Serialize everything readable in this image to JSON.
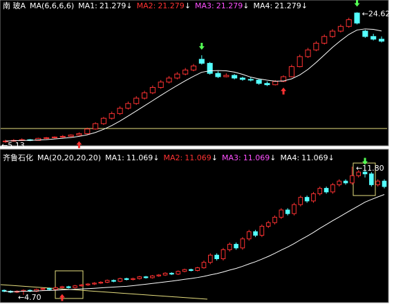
{
  "chart_data": [
    {
      "type": "candlestick",
      "stock": "南 玻A",
      "indicator": "MA(6,6,6,6)",
      "ma_period": 6,
      "ma": [
        {
          "name": "MA1:",
          "value": 21.279,
          "trend": "↓",
          "color": "#ffffff"
        },
        {
          "name": "MA2:",
          "value": 21.279,
          "trend": "↓",
          "color": "#ff3232"
        },
        {
          "name": "MA3:",
          "value": 21.279,
          "trend": "↓",
          "color": "#ff50ff"
        },
        {
          "name": "MA4:",
          "value": 21.279,
          "trend": "↓",
          "color": "#ffffff"
        }
      ],
      "ylim": [
        4.8,
        25
      ],
      "low_label": "←5.13",
      "high_label": "←24.62",
      "low_index": 0,
      "high_index": 43,
      "signals": [
        {
          "index": 9,
          "dir": "up"
        },
        {
          "index": 24,
          "dir": "down"
        },
        {
          "index": 34,
          "dir": "up"
        },
        {
          "index": 43,
          "dir": "down"
        }
      ],
      "ohlc": [
        [
          5.4,
          5.6,
          5.13,
          5.4
        ],
        [
          5.4,
          5.7,
          5.3,
          5.5
        ],
        [
          5.5,
          5.8,
          5.4,
          5.6
        ],
        [
          5.6,
          5.7,
          5.4,
          5.5
        ],
        [
          5.5,
          5.9,
          5.5,
          5.8
        ],
        [
          5.8,
          6.0,
          5.7,
          5.9
        ],
        [
          5.9,
          6.1,
          5.8,
          6.0
        ],
        [
          6.0,
          6.3,
          5.9,
          6.1
        ],
        [
          6.1,
          6.4,
          6.0,
          6.3
        ],
        [
          6.3,
          6.7,
          6.2,
          6.5
        ],
        [
          6.5,
          7.4,
          6.4,
          7.2
        ],
        [
          7.2,
          8.2,
          7.1,
          8.0
        ],
        [
          8.0,
          9.0,
          7.8,
          8.8
        ],
        [
          8.8,
          9.8,
          8.6,
          9.5
        ],
        [
          9.5,
          10.6,
          9.3,
          10.3
        ],
        [
          10.3,
          11.3,
          10.1,
          11.0
        ],
        [
          11.0,
          12.1,
          10.8,
          11.8
        ],
        [
          11.8,
          12.9,
          11.6,
          12.6
        ],
        [
          12.6,
          13.7,
          12.4,
          13.4
        ],
        [
          13.4,
          14.5,
          13.2,
          14.2
        ],
        [
          14.2,
          15.1,
          14.0,
          14.8
        ],
        [
          14.8,
          15.7,
          14.6,
          15.4
        ],
        [
          15.4,
          16.3,
          15.2,
          16.0
        ],
        [
          16.0,
          16.9,
          15.8,
          16.6
        ],
        [
          17.6,
          18.2,
          16.8,
          17.0
        ],
        [
          17.0,
          17.2,
          15.3,
          15.5
        ],
        [
          15.5,
          15.8,
          14.8,
          15.0
        ],
        [
          15.0,
          15.5,
          14.9,
          15.2
        ],
        [
          15.2,
          15.4,
          14.6,
          14.8
        ],
        [
          14.8,
          15.0,
          14.4,
          14.6
        ],
        [
          14.6,
          14.9,
          14.3,
          14.5
        ],
        [
          14.5,
          14.7,
          13.8,
          14.0
        ],
        [
          14.0,
          14.3,
          13.6,
          13.8
        ],
        [
          13.8,
          14.5,
          13.7,
          14.3
        ],
        [
          14.3,
          15.2,
          14.2,
          15.0
        ],
        [
          15.0,
          16.8,
          14.9,
          16.5
        ],
        [
          16.5,
          18.3,
          16.4,
          18.0
        ],
        [
          18.0,
          19.3,
          17.8,
          19.0
        ],
        [
          19.0,
          20.3,
          18.8,
          20.0
        ],
        [
          20.0,
          21.3,
          19.8,
          21.0
        ],
        [
          21.0,
          22.1,
          20.8,
          21.8
        ],
        [
          21.8,
          22.8,
          21.6,
          22.5
        ],
        [
          22.5,
          23.8,
          22.3,
          23.5
        ],
        [
          24.5,
          24.62,
          22.8,
          23.0
        ],
        [
          21.8,
          22.0,
          20.8,
          21.0
        ],
        [
          21.0,
          21.4,
          20.4,
          20.6
        ],
        [
          20.6,
          21.0,
          20.1,
          20.3
        ]
      ]
    },
    {
      "type": "candlestick",
      "stock": "齐鲁石化",
      "indicator": "MA(20,20,20,20)",
      "ma_period": 20,
      "ma": [
        {
          "name": "MA1:",
          "value": 11.069,
          "trend": "↓",
          "color": "#ffffff"
        },
        {
          "name": "MA2:",
          "value": 11.069,
          "trend": "↓",
          "color": "#ff3232"
        },
        {
          "name": "MA3:",
          "value": 11.069,
          "trend": "↓",
          "color": "#ff50ff"
        },
        {
          "name": "MA4:",
          "value": 11.069,
          "trend": "↓",
          "color": "#ffffff"
        }
      ],
      "ylim": [
        4.5,
        12
      ],
      "low_label": "←4.70",
      "high_label": "←11.80",
      "low_index": 3,
      "high_index": 54,
      "signals": [
        {
          "index": 9,
          "dir": "up"
        },
        {
          "index": 56,
          "dir": "down"
        }
      ],
      "ohlc": [
        [
          4.95,
          5.0,
          4.85,
          4.9
        ],
        [
          4.9,
          4.95,
          4.8,
          4.85
        ],
        [
          4.85,
          4.95,
          4.8,
          4.9
        ],
        [
          4.9,
          5.0,
          4.7,
          4.95
        ],
        [
          4.95,
          5.0,
          4.85,
          4.9
        ],
        [
          4.9,
          5.05,
          4.85,
          5.0
        ],
        [
          5.0,
          5.1,
          4.95,
          5.05
        ],
        [
          5.05,
          5.1,
          4.95,
          5.0
        ],
        [
          5.0,
          5.15,
          4.95,
          5.1
        ],
        [
          5.1,
          5.2,
          5.05,
          5.15
        ],
        [
          5.15,
          5.2,
          5.05,
          5.1
        ],
        [
          5.1,
          5.25,
          5.05,
          5.2
        ],
        [
          5.2,
          5.3,
          5.15,
          5.25
        ],
        [
          5.25,
          5.35,
          5.2,
          5.3
        ],
        [
          5.3,
          5.4,
          5.25,
          5.35
        ],
        [
          5.35,
          5.45,
          5.3,
          5.4
        ],
        [
          5.4,
          5.55,
          5.35,
          5.5
        ],
        [
          5.5,
          5.55,
          5.4,
          5.45
        ],
        [
          5.45,
          5.65,
          5.4,
          5.6
        ],
        [
          5.6,
          5.65,
          5.5,
          5.55
        ],
        [
          5.55,
          5.65,
          5.5,
          5.6
        ],
        [
          5.6,
          5.75,
          5.55,
          5.7
        ],
        [
          5.7,
          5.75,
          5.6,
          5.65
        ],
        [
          5.65,
          5.8,
          5.6,
          5.75
        ],
        [
          5.75,
          5.85,
          5.7,
          5.8
        ],
        [
          5.8,
          5.95,
          5.75,
          5.9
        ],
        [
          5.9,
          5.95,
          5.8,
          5.85
        ],
        [
          5.85,
          6.05,
          5.8,
          6.0
        ],
        [
          6.0,
          6.15,
          5.95,
          6.1
        ],
        [
          6.1,
          6.15,
          6.0,
          6.05
        ],
        [
          6.05,
          6.25,
          6.0,
          6.2
        ],
        [
          6.2,
          6.6,
          6.15,
          6.5
        ],
        [
          6.5,
          7.0,
          6.4,
          6.9
        ],
        [
          6.9,
          7.0,
          6.6,
          6.7
        ],
        [
          6.7,
          7.3,
          6.6,
          7.2
        ],
        [
          7.2,
          7.6,
          7.1,
          7.5
        ],
        [
          7.5,
          7.6,
          7.2,
          7.3
        ],
        [
          7.3,
          7.9,
          7.2,
          7.8
        ],
        [
          7.8,
          8.3,
          7.7,
          8.2
        ],
        [
          8.2,
          8.3,
          7.9,
          8.0
        ],
        [
          8.0,
          8.6,
          7.9,
          8.5
        ],
        [
          8.5,
          8.8,
          8.4,
          8.7
        ],
        [
          8.7,
          9.1,
          8.6,
          9.0
        ],
        [
          9.0,
          9.5,
          8.9,
          9.4
        ],
        [
          9.4,
          9.5,
          9.1,
          9.2
        ],
        [
          9.2,
          9.8,
          9.1,
          9.7
        ],
        [
          9.7,
          10.2,
          9.6,
          10.1
        ],
        [
          10.1,
          10.2,
          9.8,
          9.9
        ],
        [
          9.9,
          10.4,
          9.8,
          10.3
        ],
        [
          10.3,
          10.7,
          10.2,
          10.6
        ],
        [
          10.6,
          10.7,
          10.3,
          10.4
        ],
        [
          10.4,
          10.9,
          10.3,
          10.8
        ],
        [
          10.8,
          11.1,
          10.7,
          11.0
        ],
        [
          11.0,
          11.1,
          10.8,
          10.9
        ],
        [
          10.9,
          11.8,
          10.8,
          11.3
        ],
        [
          11.3,
          11.6,
          11.2,
          11.5
        ],
        [
          11.5,
          11.6,
          11.2,
          11.4
        ],
        [
          11.4,
          11.5,
          10.7,
          10.8
        ],
        [
          10.8,
          11.1,
          10.7,
          11.0
        ],
        [
          11.0,
          11.1,
          10.6,
          10.7
        ]
      ]
    }
  ]
}
